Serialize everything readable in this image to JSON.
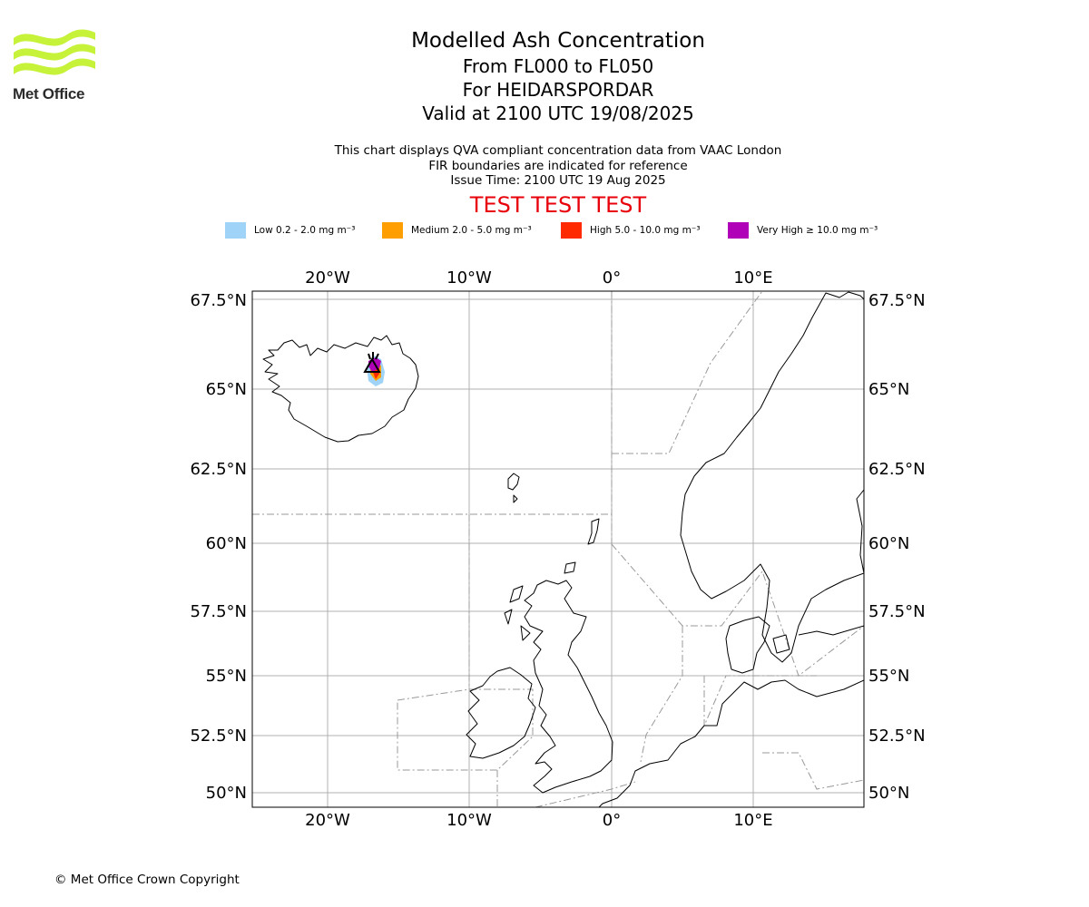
{
  "logo": {
    "text": "Met Office",
    "color": "#c6f23a"
  },
  "title": {
    "main": "Modelled Ash Concentration",
    "levels": "From FL000 to FL050",
    "volcano": "For HEIDARSPORDAR",
    "valid": "Valid at 2100 UTC 19/08/2025"
  },
  "subtitle": {
    "line1": "This chart displays QVA compliant concentration data from VAAC London",
    "line2": "FIR boundaries are indicated for reference",
    "line3": "Issue Time: 2100 UTC 19 Aug 2025"
  },
  "test_banner": "TEST TEST TEST",
  "legend": [
    {
      "label": "Low 0.2 - 2.0 mg m⁻³",
      "color": "#9fd4f8"
    },
    {
      "label": "Medium 2.0 - 5.0 mg m⁻³",
      "color": "#ff9e00"
    },
    {
      "label": "High 5.0 - 10.0 mg m⁻³",
      "color": "#ff2a00"
    },
    {
      "label": "Very High  ≥  10.0 mg m⁻³",
      "color": "#b000b8"
    }
  ],
  "map": {
    "lon_ticks": [
      "20°W",
      "10°W",
      "0°",
      "10°E"
    ],
    "lat_ticks": [
      "67.5°N",
      "65°N",
      "62.5°N",
      "60°N",
      "57.5°N",
      "55°N",
      "52.5°N",
      "50°N"
    ]
  },
  "copyright": "© Met Office Crown Copyright"
}
